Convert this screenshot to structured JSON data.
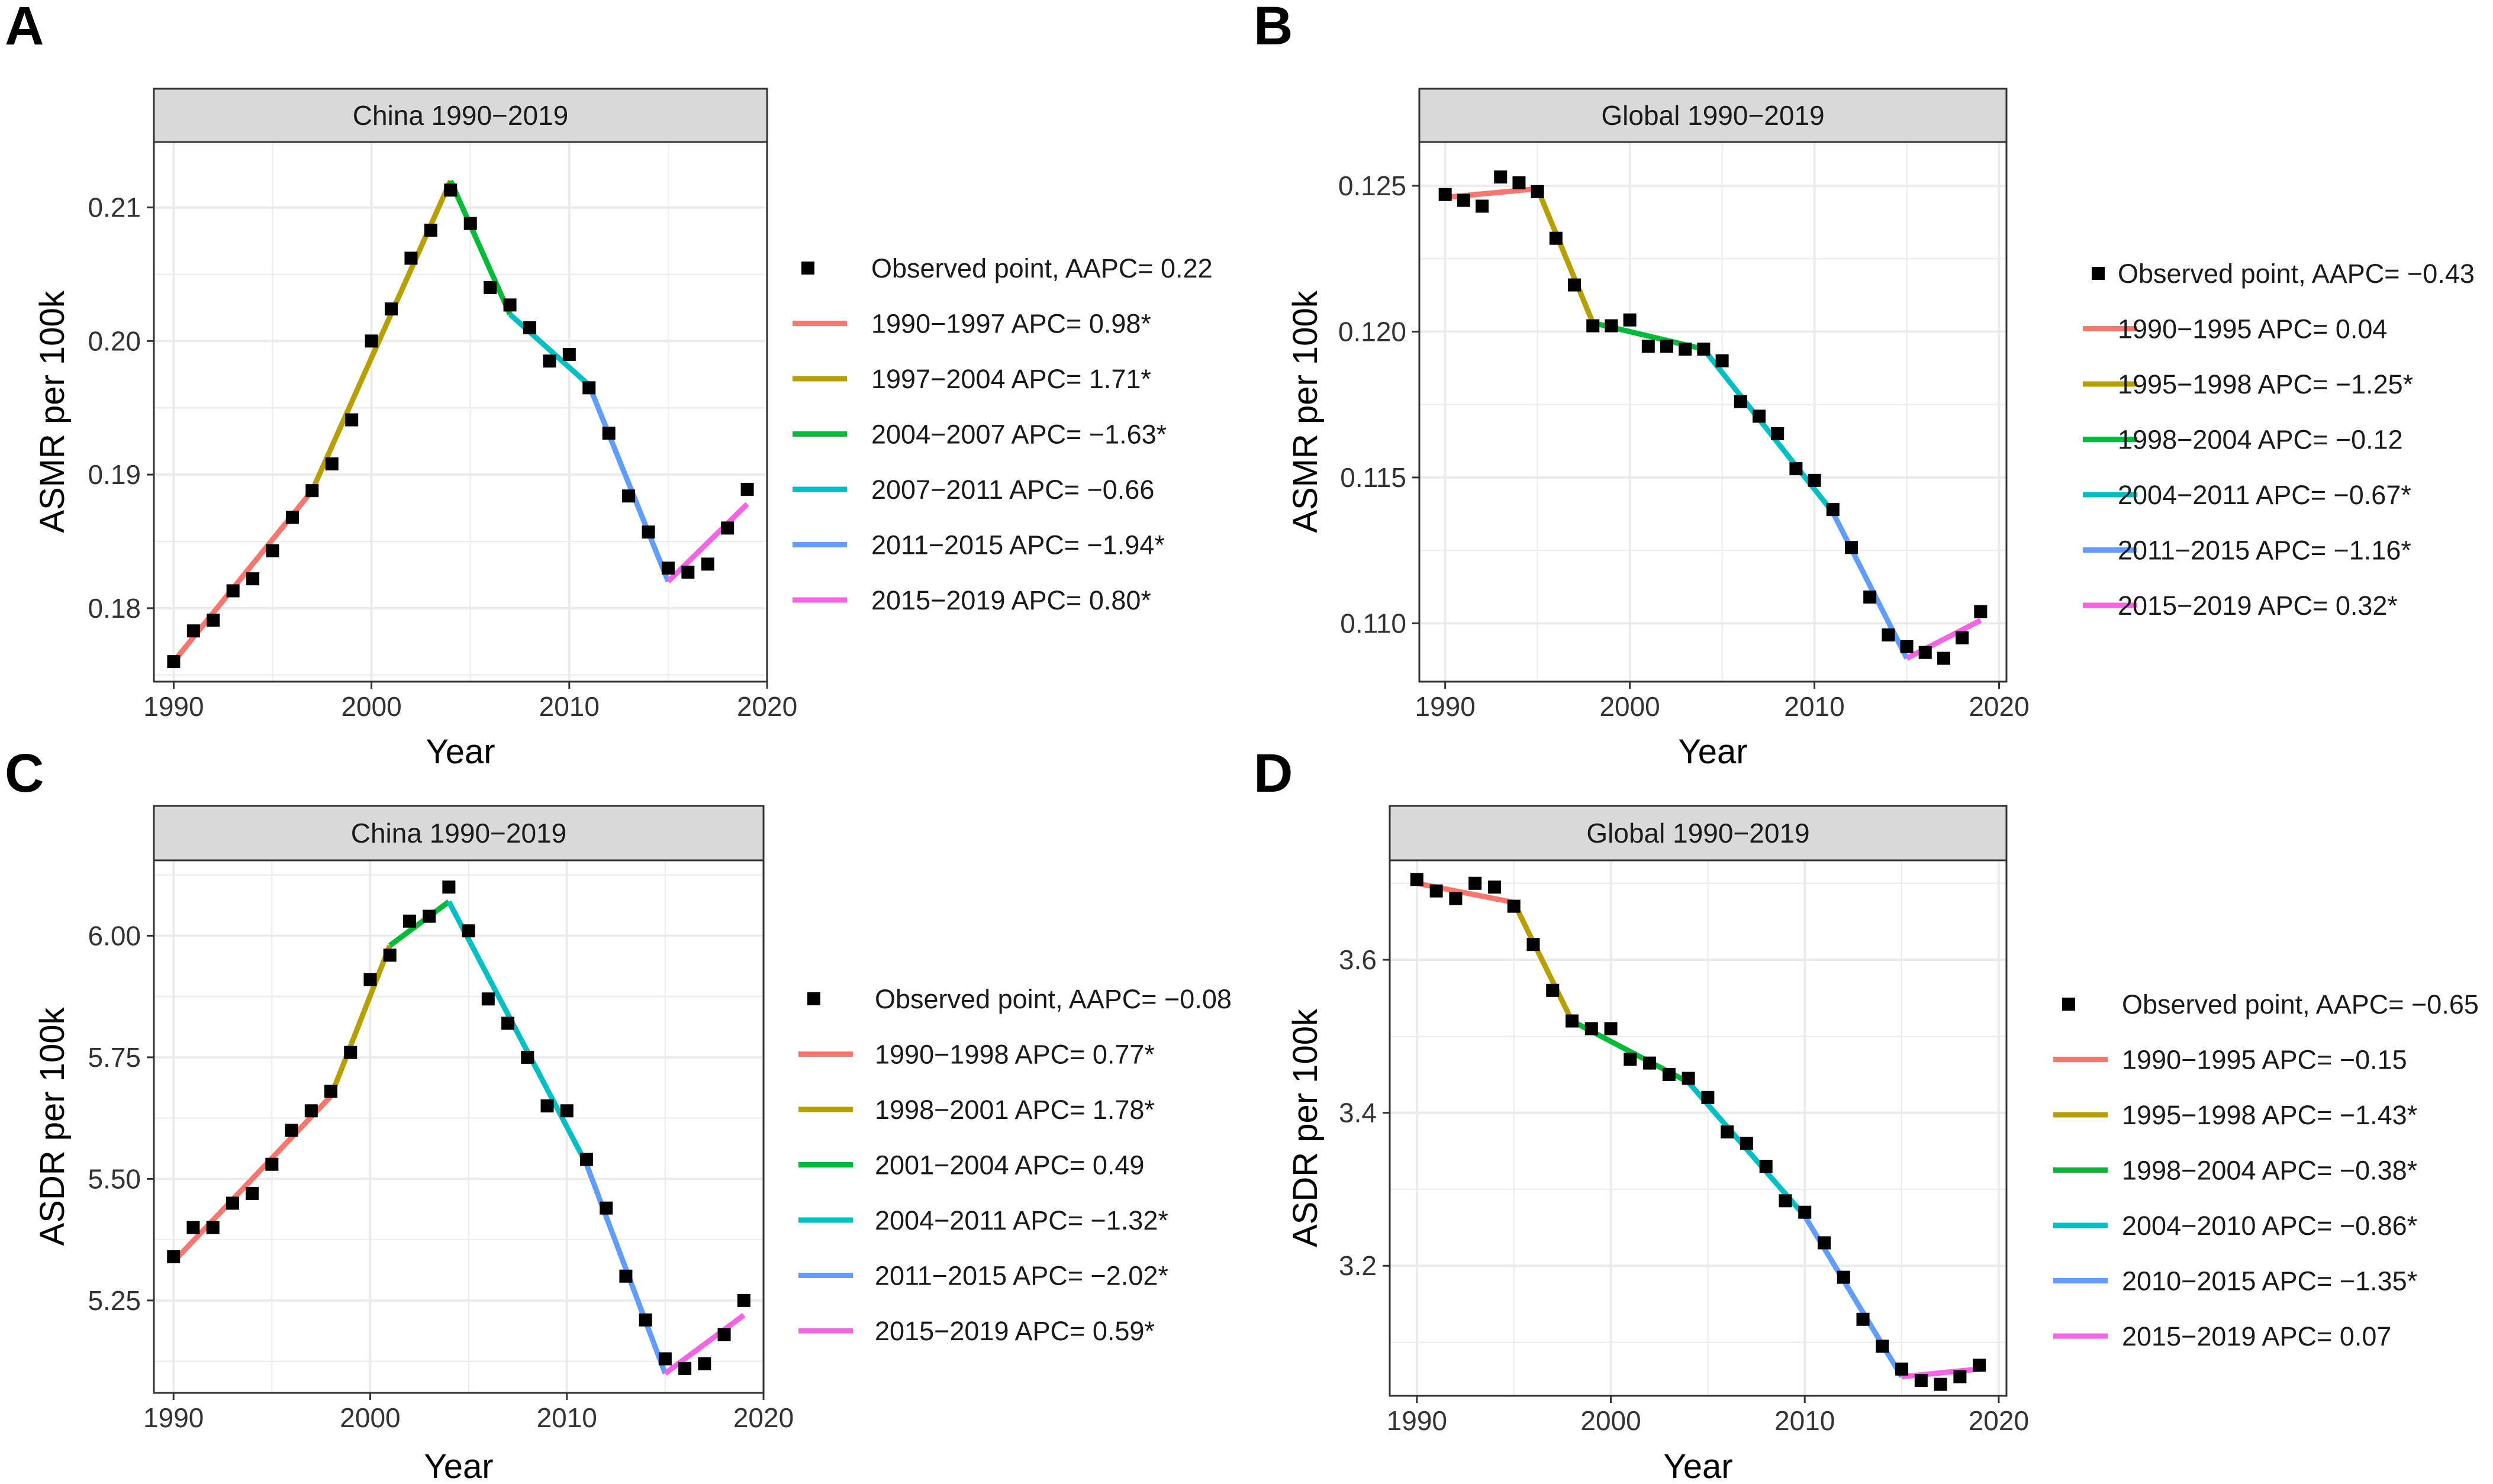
{
  "colors": {
    "seg1": "#F8766D",
    "seg2": "#B79F00",
    "seg3": "#00BA38",
    "seg4": "#00BFC4",
    "seg5": "#619CFF",
    "seg6": "#F564E3",
    "point": "#000000",
    "grid": "#EBEBEB",
    "strip_fill": "#D9D9D9",
    "border": "#333333"
  },
  "chart_data": [
    {
      "panel": "A",
      "type": "line",
      "title": "China 1990−2019",
      "xlabel": "Year",
      "ylabel": "ASMR per 100k",
      "xlim": [
        1989,
        2020
      ],
      "ylim": [
        0.1745,
        0.2149
      ],
      "x_ticks": [
        1990,
        2000,
        2010,
        2020
      ],
      "x_tick_labels": [
        "1990",
        "2000",
        "2010",
        "2020"
      ],
      "y_ticks": [
        0.18,
        0.19,
        0.2,
        0.21
      ],
      "y_tick_labels": [
        "0.18",
        "0.19",
        "0.20",
        "0.21"
      ],
      "observed_label": "Observed point, AAPC= 0.22",
      "points": {
        "x": [
          1990,
          1991,
          1992,
          1993,
          1994,
          1995,
          1996,
          1997,
          1998,
          1999,
          2000,
          2001,
          2002,
          2003,
          2004,
          2005,
          2006,
          2007,
          2008,
          2009,
          2010,
          2011,
          2012,
          2013,
          2014,
          2015,
          2016,
          2017,
          2018,
          2019
        ],
        "y": [
          0.176,
          0.1783,
          0.1791,
          0.1813,
          0.1822,
          0.1843,
          0.1868,
          0.1888,
          0.1908,
          0.1941,
          0.2,
          0.2024,
          0.2062,
          0.2083,
          0.2113,
          0.2088,
          0.204,
          0.2027,
          0.201,
          0.1985,
          0.199,
          0.1965,
          0.1931,
          0.1884,
          0.1857,
          0.183,
          0.1827,
          0.1833,
          0.186,
          0.1889
        ]
      },
      "segments": [
        {
          "label": "1990−1997 APC= 0.98*",
          "x": [
            1990,
            1997
          ],
          "y": [
            0.176,
            0.1888
          ]
        },
        {
          "label": "1997−2004 APC= 1.71*",
          "x": [
            1997,
            2004
          ],
          "y": [
            0.1888,
            0.212
          ]
        },
        {
          "label": "2004−2007 APC= −1.63*",
          "x": [
            2004,
            2007
          ],
          "y": [
            0.212,
            0.202
          ]
        },
        {
          "label": "2007−2011 APC= −0.66",
          "x": [
            2007,
            2011
          ],
          "y": [
            0.202,
            0.1967
          ]
        },
        {
          "label": "2011−2015 APC= −1.94*",
          "x": [
            2011,
            2015
          ],
          "y": [
            0.1967,
            0.182
          ]
        },
        {
          "label": "2015−2019 APC= 0.80*",
          "x": [
            2015,
            2019
          ],
          "y": [
            0.182,
            0.1878
          ]
        }
      ]
    },
    {
      "panel": "B",
      "type": "line",
      "title": "Global 1990−2019",
      "xlabel": "Year",
      "ylabel": "ASMR per 100k",
      "xlim": [
        1988.6,
        2020.4
      ],
      "ylim": [
        0.108,
        0.1265
      ],
      "x_ticks": [
        1990,
        2000,
        2010,
        2020
      ],
      "x_tick_labels": [
        "1990",
        "2000",
        "2010",
        "2020"
      ],
      "y_ticks": [
        0.11,
        0.115,
        0.12,
        0.125
      ],
      "y_tick_labels": [
        "0.110",
        "0.115",
        "0.120",
        "0.125"
      ],
      "observed_label": "Observed point, AAPC= −0.43",
      "points": {
        "x": [
          1990,
          1991,
          1992,
          1993,
          1994,
          1995,
          1996,
          1997,
          1998,
          1999,
          2000,
          2001,
          2002,
          2003,
          2004,
          2005,
          2006,
          2007,
          2008,
          2009,
          2010,
          2011,
          2012,
          2013,
          2014,
          2015,
          2016,
          2017,
          2018,
          2019
        ],
        "y": [
          0.1247,
          0.1245,
          0.1243,
          0.1253,
          0.1251,
          0.1248,
          0.1232,
          0.1216,
          0.1202,
          0.1202,
          0.1204,
          0.1195,
          0.1195,
          0.1194,
          0.1194,
          0.119,
          0.1176,
          0.1171,
          0.1165,
          0.1153,
          0.1149,
          0.1139,
          0.1126,
          0.1109,
          0.1096,
          0.1092,
          0.109,
          0.1088,
          0.1095,
          0.1104
        ]
      },
      "segments": [
        {
          "label": "1990−1995 APC= 0.04",
          "x": [
            1990,
            1995
          ],
          "y": [
            0.1246,
            0.1249
          ]
        },
        {
          "label": "1995−1998 APC= −1.25*",
          "x": [
            1995,
            1998
          ],
          "y": [
            0.1249,
            0.1203
          ]
        },
        {
          "label": "1998−2004 APC= −0.12",
          "x": [
            1998,
            2004
          ],
          "y": [
            0.1203,
            0.1194
          ]
        },
        {
          "label": "2004−2011 APC= −0.67*",
          "x": [
            2004,
            2011
          ],
          "y": [
            0.1194,
            0.1138
          ]
        },
        {
          "label": "2011−2015 APC= −1.16*",
          "x": [
            2011,
            2015
          ],
          "y": [
            0.1138,
            0.1088
          ]
        },
        {
          "label": "2015−2019 APC= 0.32*",
          "x": [
            2015,
            2019
          ],
          "y": [
            0.1088,
            0.1101
          ]
        }
      ]
    },
    {
      "panel": "C",
      "type": "line",
      "title": "China 1990−2019",
      "xlabel": "Year",
      "ylabel": "ASDR per 100k",
      "xlim": [
        1989,
        2020
      ],
      "ylim": [
        5.06,
        6.155
      ],
      "x_ticks": [
        1990,
        2000,
        2010,
        2020
      ],
      "x_tick_labels": [
        "1990",
        "2000",
        "2010",
        "2020"
      ],
      "y_ticks": [
        5.25,
        5.5,
        5.75,
        6.0
      ],
      "y_tick_labels": [
        "5.25",
        "5.50",
        "5.75",
        "6.00"
      ],
      "observed_label": "Observed point, AAPC= −0.08",
      "points": {
        "x": [
          1990,
          1991,
          1992,
          1993,
          1994,
          1995,
          1996,
          1997,
          1998,
          1999,
          2000,
          2001,
          2002,
          2003,
          2004,
          2005,
          2006,
          2007,
          2008,
          2009,
          2010,
          2011,
          2012,
          2013,
          2014,
          2015,
          2016,
          2017,
          2018,
          2019
        ],
        "y": [
          5.34,
          5.4,
          5.4,
          5.45,
          5.47,
          5.53,
          5.6,
          5.64,
          5.68,
          5.76,
          5.91,
          5.96,
          6.03,
          6.04,
          6.1,
          6.01,
          5.87,
          5.82,
          5.75,
          5.65,
          5.64,
          5.54,
          5.44,
          5.3,
          5.21,
          5.13,
          5.11,
          5.12,
          5.18,
          5.25
        ]
      },
      "segments": [
        {
          "label": "1990−1998 APC= 0.77*",
          "x": [
            1990,
            1998
          ],
          "y": [
            5.33,
            5.67
          ]
        },
        {
          "label": "1998−2001 APC= 1.78*",
          "x": [
            1998,
            2001
          ],
          "y": [
            5.67,
            5.98
          ]
        },
        {
          "label": "2001−2004 APC= 0.49",
          "x": [
            2001,
            2004
          ],
          "y": [
            5.98,
            6.07
          ]
        },
        {
          "label": "2004−2011 APC= −1.32*",
          "x": [
            2004,
            2011
          ],
          "y": [
            6.07,
            5.53
          ]
        },
        {
          "label": "2011−2015 APC= −2.02*",
          "x": [
            2011,
            2015
          ],
          "y": [
            5.53,
            5.1
          ]
        },
        {
          "label": "2015−2019 APC= 0.59*",
          "x": [
            2015,
            2019
          ],
          "y": [
            5.1,
            5.22
          ]
        }
      ]
    },
    {
      "panel": "D",
      "type": "line",
      "title": "Global 1990−2019",
      "xlabel": "Year",
      "ylabel": "ASDR per 100k",
      "xlim": [
        1988.6,
        2020.4
      ],
      "ylim": [
        3.03,
        3.73
      ],
      "x_ticks": [
        1990,
        2000,
        2010,
        2020
      ],
      "x_tick_labels": [
        "1990",
        "2000",
        "2010",
        "2020"
      ],
      "y_ticks": [
        3.2,
        3.4,
        3.6
      ],
      "y_tick_labels": [
        "3.2",
        "3.4",
        "3.6"
      ],
      "observed_label": "Observed point, AAPC= −0.65",
      "points": {
        "x": [
          1990,
          1991,
          1992,
          1993,
          1994,
          1995,
          1996,
          1997,
          1998,
          1999,
          2000,
          2001,
          2002,
          2003,
          2004,
          2005,
          2006,
          2007,
          2008,
          2009,
          2010,
          2011,
          2012,
          2013,
          2014,
          2015,
          2016,
          2017,
          2018,
          2019
        ],
        "y": [
          3.705,
          3.69,
          3.68,
          3.7,
          3.695,
          3.67,
          3.62,
          3.56,
          3.52,
          3.51,
          3.51,
          3.47,
          3.465,
          3.45,
          3.445,
          3.42,
          3.375,
          3.36,
          3.33,
          3.285,
          3.27,
          3.23,
          3.185,
          3.13,
          3.095,
          3.065,
          3.05,
          3.045,
          3.055,
          3.07
        ]
      },
      "segments": [
        {
          "label": "1990−1995 APC= −0.15",
          "x": [
            1990,
            1995
          ],
          "y": [
            3.7,
            3.675
          ]
        },
        {
          "label": "1995−1998 APC= −1.43*",
          "x": [
            1995,
            1998
          ],
          "y": [
            3.675,
            3.52
          ]
        },
        {
          "label": "1998−2004 APC= −0.38*",
          "x": [
            1998,
            2004
          ],
          "y": [
            3.52,
            3.44
          ]
        },
        {
          "label": "2004−2010 APC= −0.86*",
          "x": [
            2004,
            2010
          ],
          "y": [
            3.44,
            3.265
          ]
        },
        {
          "label": "2010−2015 APC= −1.35*",
          "x": [
            2010,
            2015
          ],
          "y": [
            3.265,
            3.055
          ]
        },
        {
          "label": "2015−2019 APC= 0.07",
          "x": [
            2015,
            2019
          ],
          "y": [
            3.055,
            3.065
          ]
        }
      ]
    }
  ]
}
